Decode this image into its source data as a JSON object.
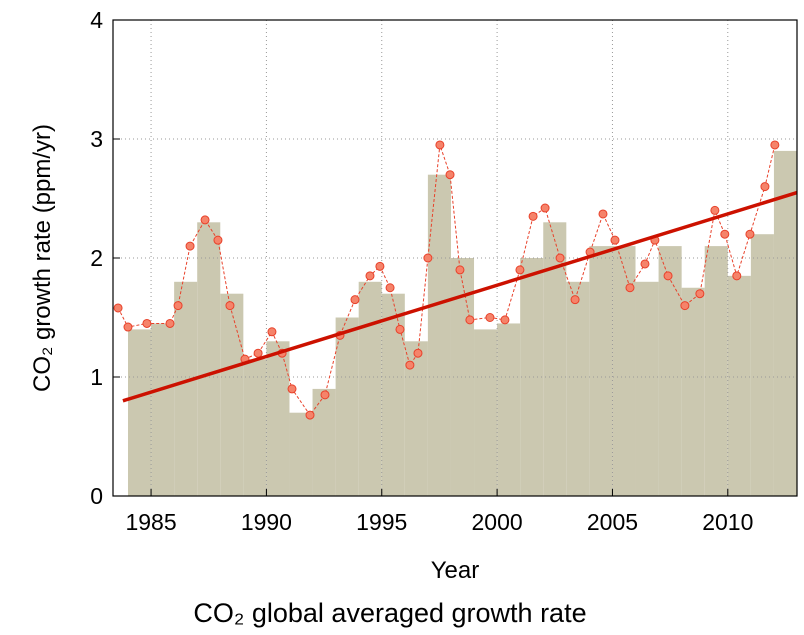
{
  "chart_data": {
    "type": "bar",
    "title": "CO₂ global averaged growth rate",
    "x_label": "Year",
    "y_label": "CO₂ growth rate (ppm/yr)",
    "xlim": [
      1983.35,
      2013
    ],
    "ylim": [
      0,
      4
    ],
    "xticks": [
      1985,
      1990,
      1995,
      2000,
      2005,
      2010
    ],
    "yticks": [
      0,
      1,
      2,
      3,
      4
    ],
    "grid": true,
    "bars": {
      "color": "#cbc8b0",
      "x": [
        1984,
        1985,
        1986,
        1987,
        1988,
        1989,
        1990,
        1991,
        1992,
        1993,
        1994,
        1995,
        1996,
        1997,
        1998,
        1999,
        2000,
        2001,
        2002,
        2003,
        2004,
        2005,
        2006,
        2007,
        2008,
        2009,
        2010,
        2011,
        2012
      ],
      "values": [
        1.4,
        1.45,
        1.8,
        2.3,
        1.7,
        1.15,
        1.3,
        0.7,
        0.9,
        1.5,
        1.8,
        1.7,
        1.3,
        2.7,
        2.0,
        1.4,
        1.45,
        2.0,
        2.3,
        1.8,
        2.1,
        2.1,
        1.8,
        2.1,
        1.75,
        2.1,
        1.85,
        2.2,
        2.9
      ]
    },
    "monthly": {
      "color": "#f5836a",
      "edge_color": "#e8412a",
      "x": [
        1983.57,
        1984.0,
        1984.82,
        1985.82,
        1986.17,
        1986.69,
        1987.34,
        1987.9,
        1988.42,
        1989.07,
        1989.64,
        1990.24,
        1990.68,
        1991.11,
        1991.89,
        1992.54,
        1993.19,
        1993.84,
        1994.49,
        1994.92,
        1995.36,
        1995.79,
        1996.22,
        1996.57,
        1997.0,
        1997.52,
        1997.96,
        1998.39,
        1998.82,
        1999.69,
        2000.34,
        2000.99,
        2001.56,
        2002.08,
        2002.73,
        2003.38,
        2004.03,
        2004.59,
        2005.11,
        2005.76,
        2006.41,
        2006.84,
        2007.41,
        2008.14,
        2008.79,
        2009.44,
        2009.87,
        2010.39,
        2010.96,
        2011.61,
        2012.04
      ],
      "values": [
        1.58,
        1.42,
        1.45,
        1.45,
        1.6,
        2.1,
        2.32,
        2.15,
        1.6,
        1.15,
        1.2,
        1.38,
        1.2,
        0.9,
        0.68,
        0.85,
        1.35,
        1.65,
        1.85,
        1.93,
        1.75,
        1.4,
        1.1,
        1.2,
        2.0,
        2.95,
        2.7,
        1.9,
        1.48,
        1.5,
        1.48,
        1.9,
        2.35,
        2.42,
        2.0,
        1.65,
        2.05,
        2.37,
        2.15,
        1.75,
        1.95,
        2.15,
        1.85,
        1.6,
        1.7,
        2.4,
        2.2,
        1.85,
        2.2,
        2.6,
        2.95
      ]
    },
    "trend": {
      "color": "#cc1100",
      "x": [
        1983.78,
        2013
      ],
      "values": [
        0.8,
        2.55
      ]
    }
  }
}
